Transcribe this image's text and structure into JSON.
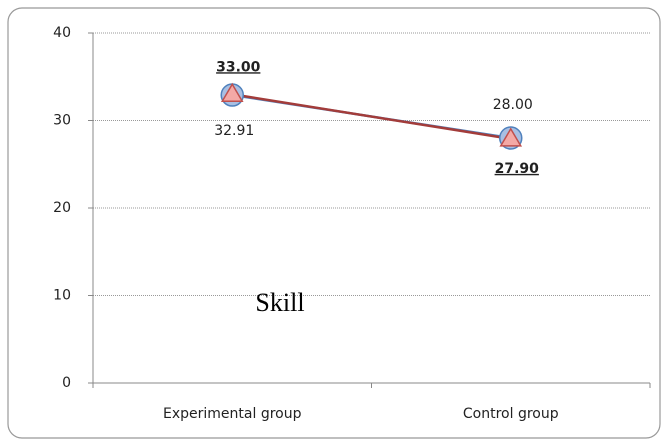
{
  "chart_data": {
    "type": "line",
    "categories": [
      "Experimental group",
      "Control group"
    ],
    "series": [
      {
        "marker": "circle",
        "color": "#4f81bd",
        "fill": "#a9bfe2",
        "values": [
          32.91,
          28.0
        ],
        "value_labels": [
          "32.91",
          "28.00"
        ]
      },
      {
        "marker": "triangle",
        "color": "#c0504d",
        "fill": "#f4a9a6",
        "values": [
          33.0,
          27.9
        ],
        "value_labels": [
          "33.00",
          "27.90"
        ]
      }
    ],
    "ylim": [
      0,
      40
    ],
    "yticks": [
      0,
      10,
      20,
      30,
      40
    ],
    "grid": true,
    "annotation": "Skill"
  }
}
